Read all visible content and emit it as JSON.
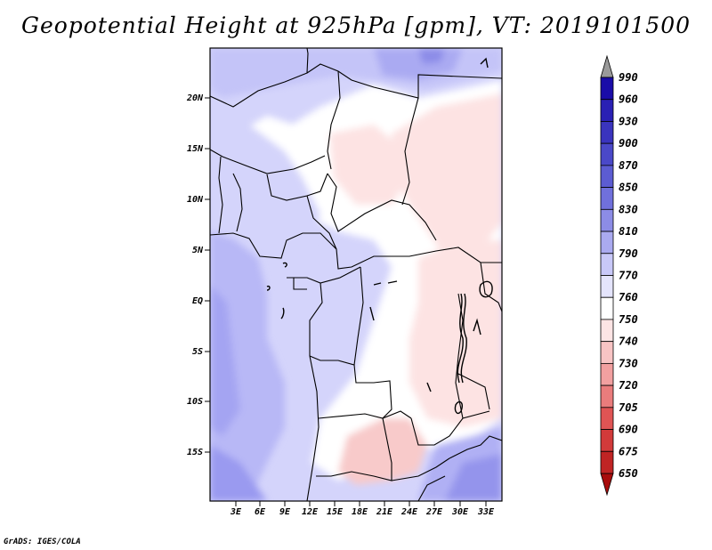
{
  "title": "Geopotential Height at 925hPa [gpm], VT: 2019101500",
  "footer": "GrADS: IGES/COLA",
  "map": {
    "lat_labels": [
      "20N",
      "15N",
      "10N",
      "5N",
      "EQ",
      "5S",
      "10S",
      "15S"
    ],
    "lon_labels": [
      "3E",
      "6E",
      "9E",
      "12E",
      "15E",
      "18E",
      "21E",
      "24E",
      "27E",
      "30E",
      "33E"
    ]
  },
  "colorbar": {
    "levels": [
      "990",
      "960",
      "930",
      "900",
      "870",
      "850",
      "830",
      "810",
      "790",
      "770",
      "760",
      "750",
      "740",
      "730",
      "720",
      "705",
      "690",
      "675",
      "650"
    ],
    "colors": [
      "#1a0ca8",
      "#2a20b4",
      "#3a34be",
      "#4a48c8",
      "#5c5cd2",
      "#7070dc",
      "#8c8ce6",
      "#aaaaf0",
      "#c8c8f8",
      "#e4e4fc",
      "#ffffff",
      "#fde4e4",
      "#f8c4c4",
      "#f2a0a0",
      "#ea7c7c",
      "#e05454",
      "#d23a3a",
      "#c02424",
      "#a80c0c"
    ],
    "over_color": "#9a9a9a",
    "under_color": "#a80c0c"
  }
}
